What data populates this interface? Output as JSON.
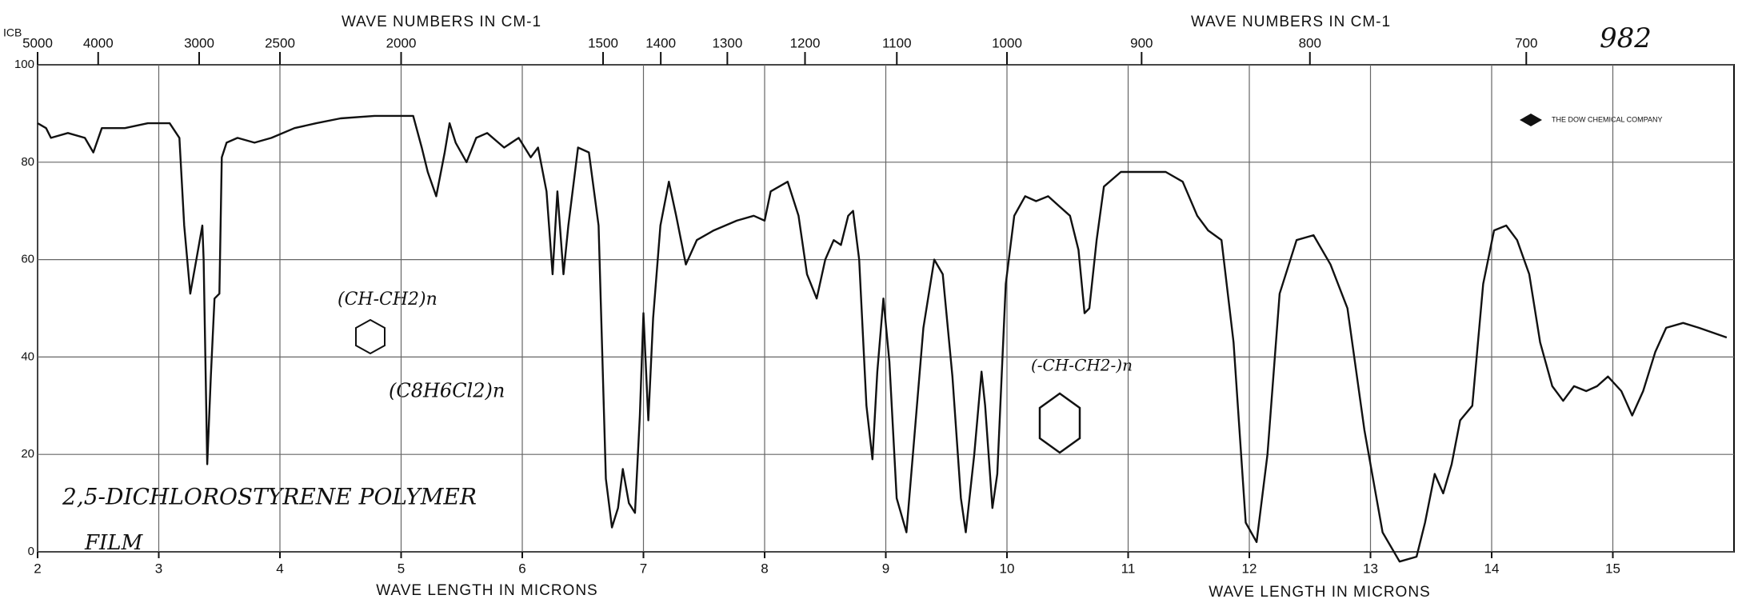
{
  "chart_data": {
    "type": "line",
    "x2label": "WAVE NUMBERS IN CM-1",
    "xlabel": "WAVE LENGTH IN MICRONS",
    "xlim": [
      2,
      16
    ],
    "xticks": [
      2,
      3,
      4,
      5,
      6,
      7,
      8,
      9,
      10,
      11,
      12,
      13,
      14,
      15
    ],
    "x2ticks": [
      5000,
      4000,
      3000,
      2500,
      2000,
      1500,
      1400,
      1300,
      1200,
      1100,
      1000,
      900,
      800,
      700
    ],
    "ylim": [
      0,
      100
    ],
    "yticks": [
      0,
      20,
      40,
      60,
      80,
      100
    ],
    "grid": true,
    "color": "#111111",
    "x": [
      2.0,
      2.07,
      2.11,
      2.25,
      2.39,
      2.46,
      2.53,
      2.72,
      2.91,
      3.09,
      3.17,
      3.21,
      3.26,
      3.31,
      3.36,
      3.37,
      3.4,
      3.43,
      3.46,
      3.5,
      3.52,
      3.56,
      3.65,
      3.79,
      3.93,
      4.12,
      4.3,
      4.5,
      4.78,
      5.1,
      5.17,
      5.22,
      5.29,
      5.36,
      5.4,
      5.45,
      5.54,
      5.62,
      5.71,
      5.85,
      5.97,
      6.07,
      6.13,
      6.2,
      6.25,
      6.29,
      6.34,
      6.38,
      6.46,
      6.55,
      6.63,
      6.69,
      6.74,
      6.79,
      6.83,
      6.88,
      6.93,
      6.97,
      7.0,
      7.04,
      7.08,
      7.14,
      7.21,
      7.27,
      7.35,
      7.44,
      7.58,
      7.77,
      7.91,
      8.0,
      8.05,
      8.19,
      8.28,
      8.35,
      8.43,
      8.5,
      8.57,
      8.63,
      8.69,
      8.73,
      8.78,
      8.84,
      8.89,
      8.93,
      8.98,
      9.03,
      9.09,
      9.17,
      9.24,
      9.31,
      9.4,
      9.47,
      9.55,
      9.62,
      9.66,
      9.73,
      9.79,
      9.82,
      9.88,
      9.92,
      9.99,
      10.06,
      10.15,
      10.24,
      10.34,
      10.43,
      10.52,
      10.59,
      10.64,
      10.68,
      10.74,
      10.8,
      10.94,
      11.31,
      11.45,
      11.57,
      11.66,
      11.77,
      11.87,
      11.97,
      12.06,
      12.15,
      12.25,
      12.39,
      12.53,
      12.67,
      12.81,
      12.95,
      13.1,
      13.24,
      13.38,
      13.45,
      13.53,
      13.6,
      13.67,
      13.74,
      13.84,
      13.93,
      14.02,
      14.12,
      14.21,
      14.31,
      14.4,
      14.5,
      14.59,
      14.68,
      14.78,
      14.87,
      14.96,
      15.07,
      15.16,
      15.25,
      15.35,
      15.44,
      15.58,
      15.71,
      15.94
    ],
    "values": [
      88,
      87,
      85,
      86,
      85,
      82,
      87,
      87,
      88,
      88,
      85,
      67,
      53,
      60,
      67,
      60,
      18,
      36,
      52,
      53,
      81,
      84,
      85,
      84,
      85,
      87,
      88,
      89,
      89.5,
      89.5,
      83,
      78,
      73,
      82,
      88,
      84,
      80,
      85,
      86,
      83,
      85,
      81,
      83,
      74,
      57,
      74,
      57,
      67,
      83,
      82,
      67,
      15,
      5,
      9,
      17,
      10,
      8,
      28,
      49,
      27,
      48,
      67,
      76,
      69,
      59,
      64,
      66,
      68,
      69,
      68,
      74,
      76,
      69,
      57,
      52,
      60,
      64,
      63,
      69,
      70,
      60,
      30,
      19,
      37,
      52,
      39,
      11,
      4,
      25,
      46,
      60,
      57,
      36,
      11,
      4,
      20,
      37,
      30,
      9,
      16,
      55,
      69,
      73,
      72,
      73,
      71,
      69,
      62,
      49,
      50,
      64,
      75,
      78,
      78,
      76,
      69,
      66,
      64,
      43,
      6,
      2,
      20,
      53,
      64,
      65,
      59,
      50,
      25,
      4,
      -2,
      -1,
      6,
      16,
      12,
      18,
      27,
      30,
      55,
      66,
      67,
      64,
      57,
      43,
      34,
      31,
      34,
      33,
      34,
      36,
      33,
      28,
      33,
      41,
      46,
      47,
      46,
      44
    ],
    "annotations": [
      "2,5-DICHLOROSTYRENE POLYMER",
      "FILM",
      "982",
      "THE DOW CHEMICAL COMPANY",
      "ICB",
      "(CH-CH2)n",
      "(C8H6Cl2)n",
      "(-CH-CH2-)n"
    ]
  }
}
